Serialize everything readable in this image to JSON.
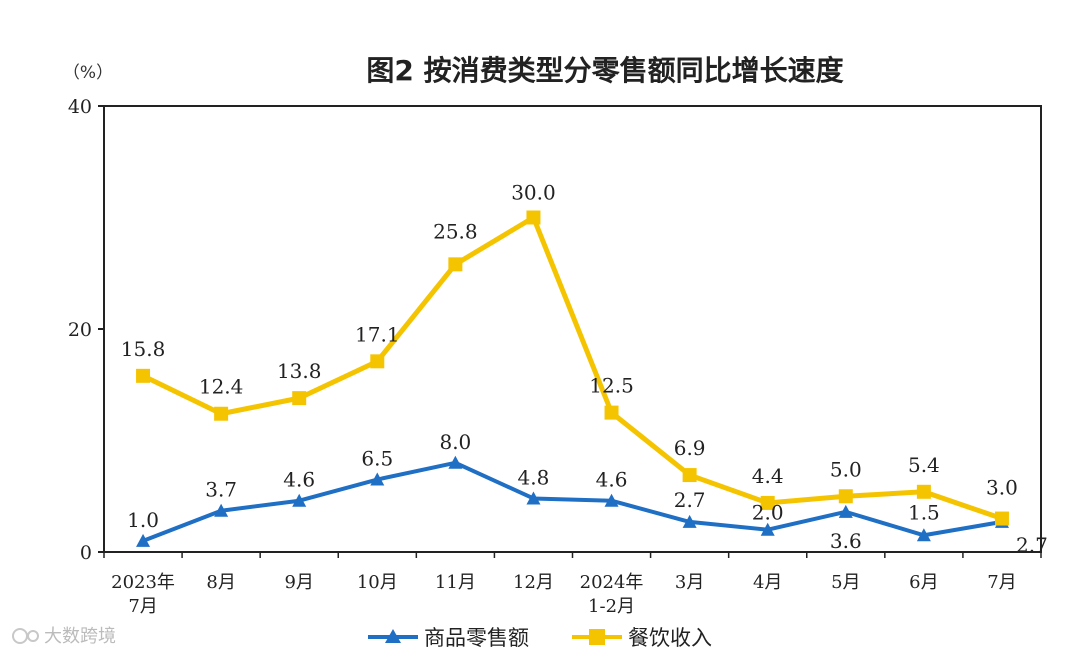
{
  "watermark": "大数跨境",
  "chart_data": {
    "type": "line",
    "title": "图2  按消费类型分零售额同比增长速度",
    "unit_label": "（%）",
    "ylim": [
      0,
      40
    ],
    "yticks": [
      0,
      20,
      40
    ],
    "categories": [
      [
        "2023年",
        "7月"
      ],
      [
        "8月"
      ],
      [
        "9月"
      ],
      [
        "10月"
      ],
      [
        "11月"
      ],
      [
        "12月"
      ],
      [
        "2024年",
        "1-2月"
      ],
      [
        "3月"
      ],
      [
        "4月"
      ],
      [
        "5月"
      ],
      [
        "6月"
      ],
      [
        "7月"
      ]
    ],
    "series": [
      {
        "name": "商品零售额",
        "color": "#1f6fc5",
        "marker": "triangle",
        "values": [
          1.0,
          3.7,
          4.6,
          6.5,
          8.0,
          4.8,
          4.6,
          2.7,
          2.0,
          3.6,
          1.5,
          2.7
        ],
        "labels": [
          "1.0",
          "3.7",
          "4.6",
          "6.5",
          "8.0",
          "4.8",
          "4.6",
          "2.7",
          "2.0",
          "3.6",
          "1.5",
          "2.7"
        ]
      },
      {
        "name": "餐饮收入",
        "color": "#f5c400",
        "marker": "square",
        "values": [
          15.8,
          12.4,
          13.8,
          17.1,
          25.8,
          30.0,
          12.5,
          6.9,
          4.4,
          5.0,
          5.4,
          3.0
        ],
        "labels": [
          "15.8",
          "12.4",
          "13.8",
          "17.1",
          "25.8",
          "30.0",
          "12.5",
          "6.9",
          "4.4",
          "5.0",
          "5.4",
          "3.0"
        ]
      }
    ]
  }
}
